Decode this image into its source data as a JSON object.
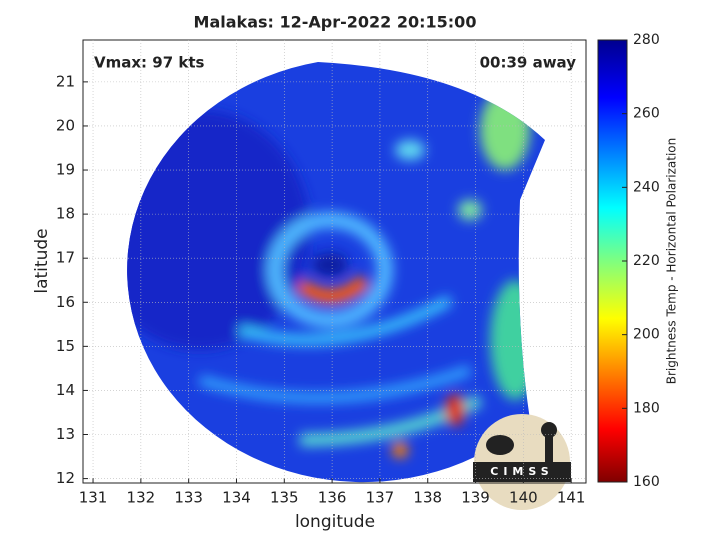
{
  "chart_data": {
    "type": "map",
    "title": "Malakas: 12-Apr-2022 20:15:00",
    "annotations": [
      "Vmax: 97 kts",
      "00:39 away"
    ],
    "x_label": "longitude",
    "y_label": "latitude",
    "xlim": [
      130.79,
      141.31
    ],
    "ylim": [
      11.9,
      21.95
    ],
    "xticks": [
      131,
      132,
      133,
      134,
      135,
      136,
      137,
      138,
      139,
      140,
      141
    ],
    "yticks": [
      12,
      13,
      14,
      15,
      16,
      17,
      18,
      19,
      20,
      21
    ],
    "grid": true,
    "colorbar": {
      "label": "Brightness Temp - Horizontal Polarization",
      "lim": [
        160,
        280
      ],
      "ticks": [
        160,
        180,
        200,
        220,
        240,
        260,
        280
      ]
    },
    "logo_text": "CIMSS"
  }
}
